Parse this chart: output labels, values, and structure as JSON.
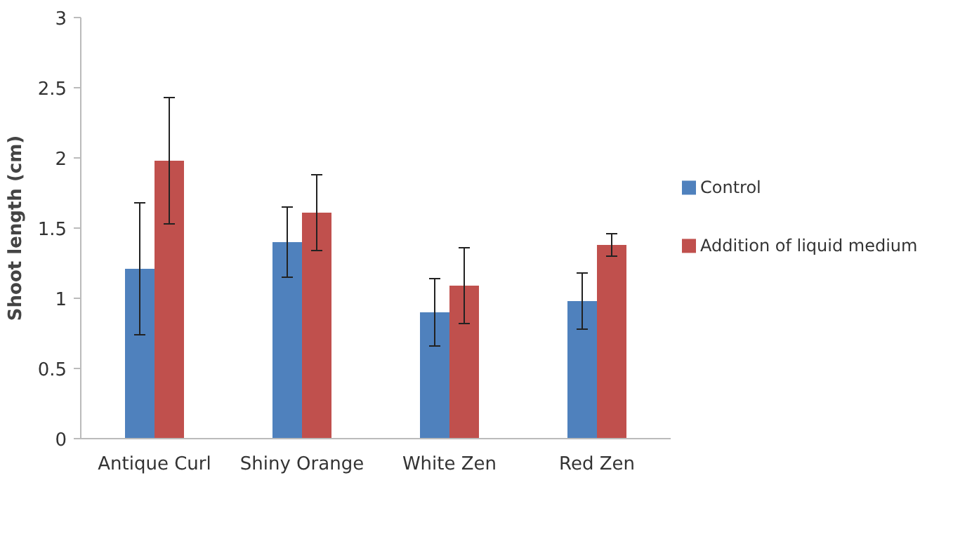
{
  "chart_data": {
    "type": "bar",
    "ylabel": "Shoot length (cm)",
    "categories": [
      "Antique Curl",
      "Shiny Orange",
      "White Zen",
      "Red Zen"
    ],
    "series": [
      {
        "name": "Control",
        "color": "#4f81bd",
        "values": [
          1.21,
          1.4,
          0.9,
          0.98
        ],
        "errors": [
          0.47,
          0.25,
          0.24,
          0.2
        ]
      },
      {
        "name": "Addition of liquid medium",
        "color": "#c0504d",
        "values": [
          1.98,
          1.61,
          1.09,
          1.38
        ],
        "errors": [
          0.45,
          0.27,
          0.27,
          0.08
        ]
      }
    ],
    "ylim": [
      0,
      3
    ],
    "yticks": [
      0,
      0.5,
      1,
      1.5,
      2,
      2.5,
      3
    ],
    "grid": false,
    "legend": "right"
  }
}
